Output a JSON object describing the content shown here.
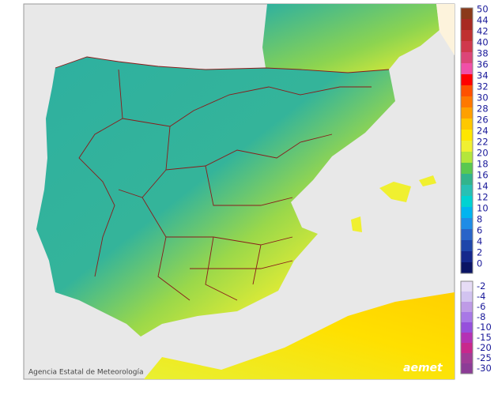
{
  "map": {
    "credit": "Agencia Estatal de Meteorología",
    "logo": "aemet",
    "legend": {
      "upper": [
        {
          "label": "50",
          "color": "#8b3a1a"
        },
        {
          "label": "44",
          "color": "#a82a22"
        },
        {
          "label": "42",
          "color": "#c03030"
        },
        {
          "label": "40",
          "color": "#d0384c"
        },
        {
          "label": "38",
          "color": "#dc4678"
        },
        {
          "label": "36",
          "color": "#f050a8"
        },
        {
          "label": "34",
          "color": "#ff0000"
        },
        {
          "label": "32",
          "color": "#ff5000"
        },
        {
          "label": "30",
          "color": "#ff7800"
        },
        {
          "label": "28",
          "color": "#ffa000"
        },
        {
          "label": "26",
          "color": "#ffc800"
        },
        {
          "label": "24",
          "color": "#ffe600"
        },
        {
          "label": "22",
          "color": "#f0f032"
        },
        {
          "label": "20",
          "color": "#b4e63c"
        },
        {
          "label": "18",
          "color": "#5ac850"
        },
        {
          "label": "16",
          "color": "#32b48c"
        },
        {
          "label": "14",
          "color": "#28c0b4"
        },
        {
          "label": "12",
          "color": "#00d2d2"
        },
        {
          "label": "10",
          "color": "#00b4f0"
        },
        {
          "label": "8",
          "color": "#1e8ce6"
        },
        {
          "label": "6",
          "color": "#2864c8"
        },
        {
          "label": "4",
          "color": "#1e46aa"
        },
        {
          "label": "2",
          "color": "#14288c"
        },
        {
          "label": "0",
          "color": "#0a1464"
        }
      ],
      "lower": [
        {
          "label": "-2",
          "color": "#e6dcf5"
        },
        {
          "label": "-4",
          "color": "#d2c3f0"
        },
        {
          "label": "-6",
          "color": "#be9be6"
        },
        {
          "label": "-8",
          "color": "#a878e6"
        },
        {
          "label": "-10",
          "color": "#9650dc"
        },
        {
          "label": "-15",
          "color": "#b432b4"
        },
        {
          "label": "-20",
          "color": "#c8288c"
        },
        {
          "label": "-25",
          "color": "#a03c96"
        },
        {
          "label": "-30",
          "color": "#8c3c96"
        }
      ]
    }
  }
}
